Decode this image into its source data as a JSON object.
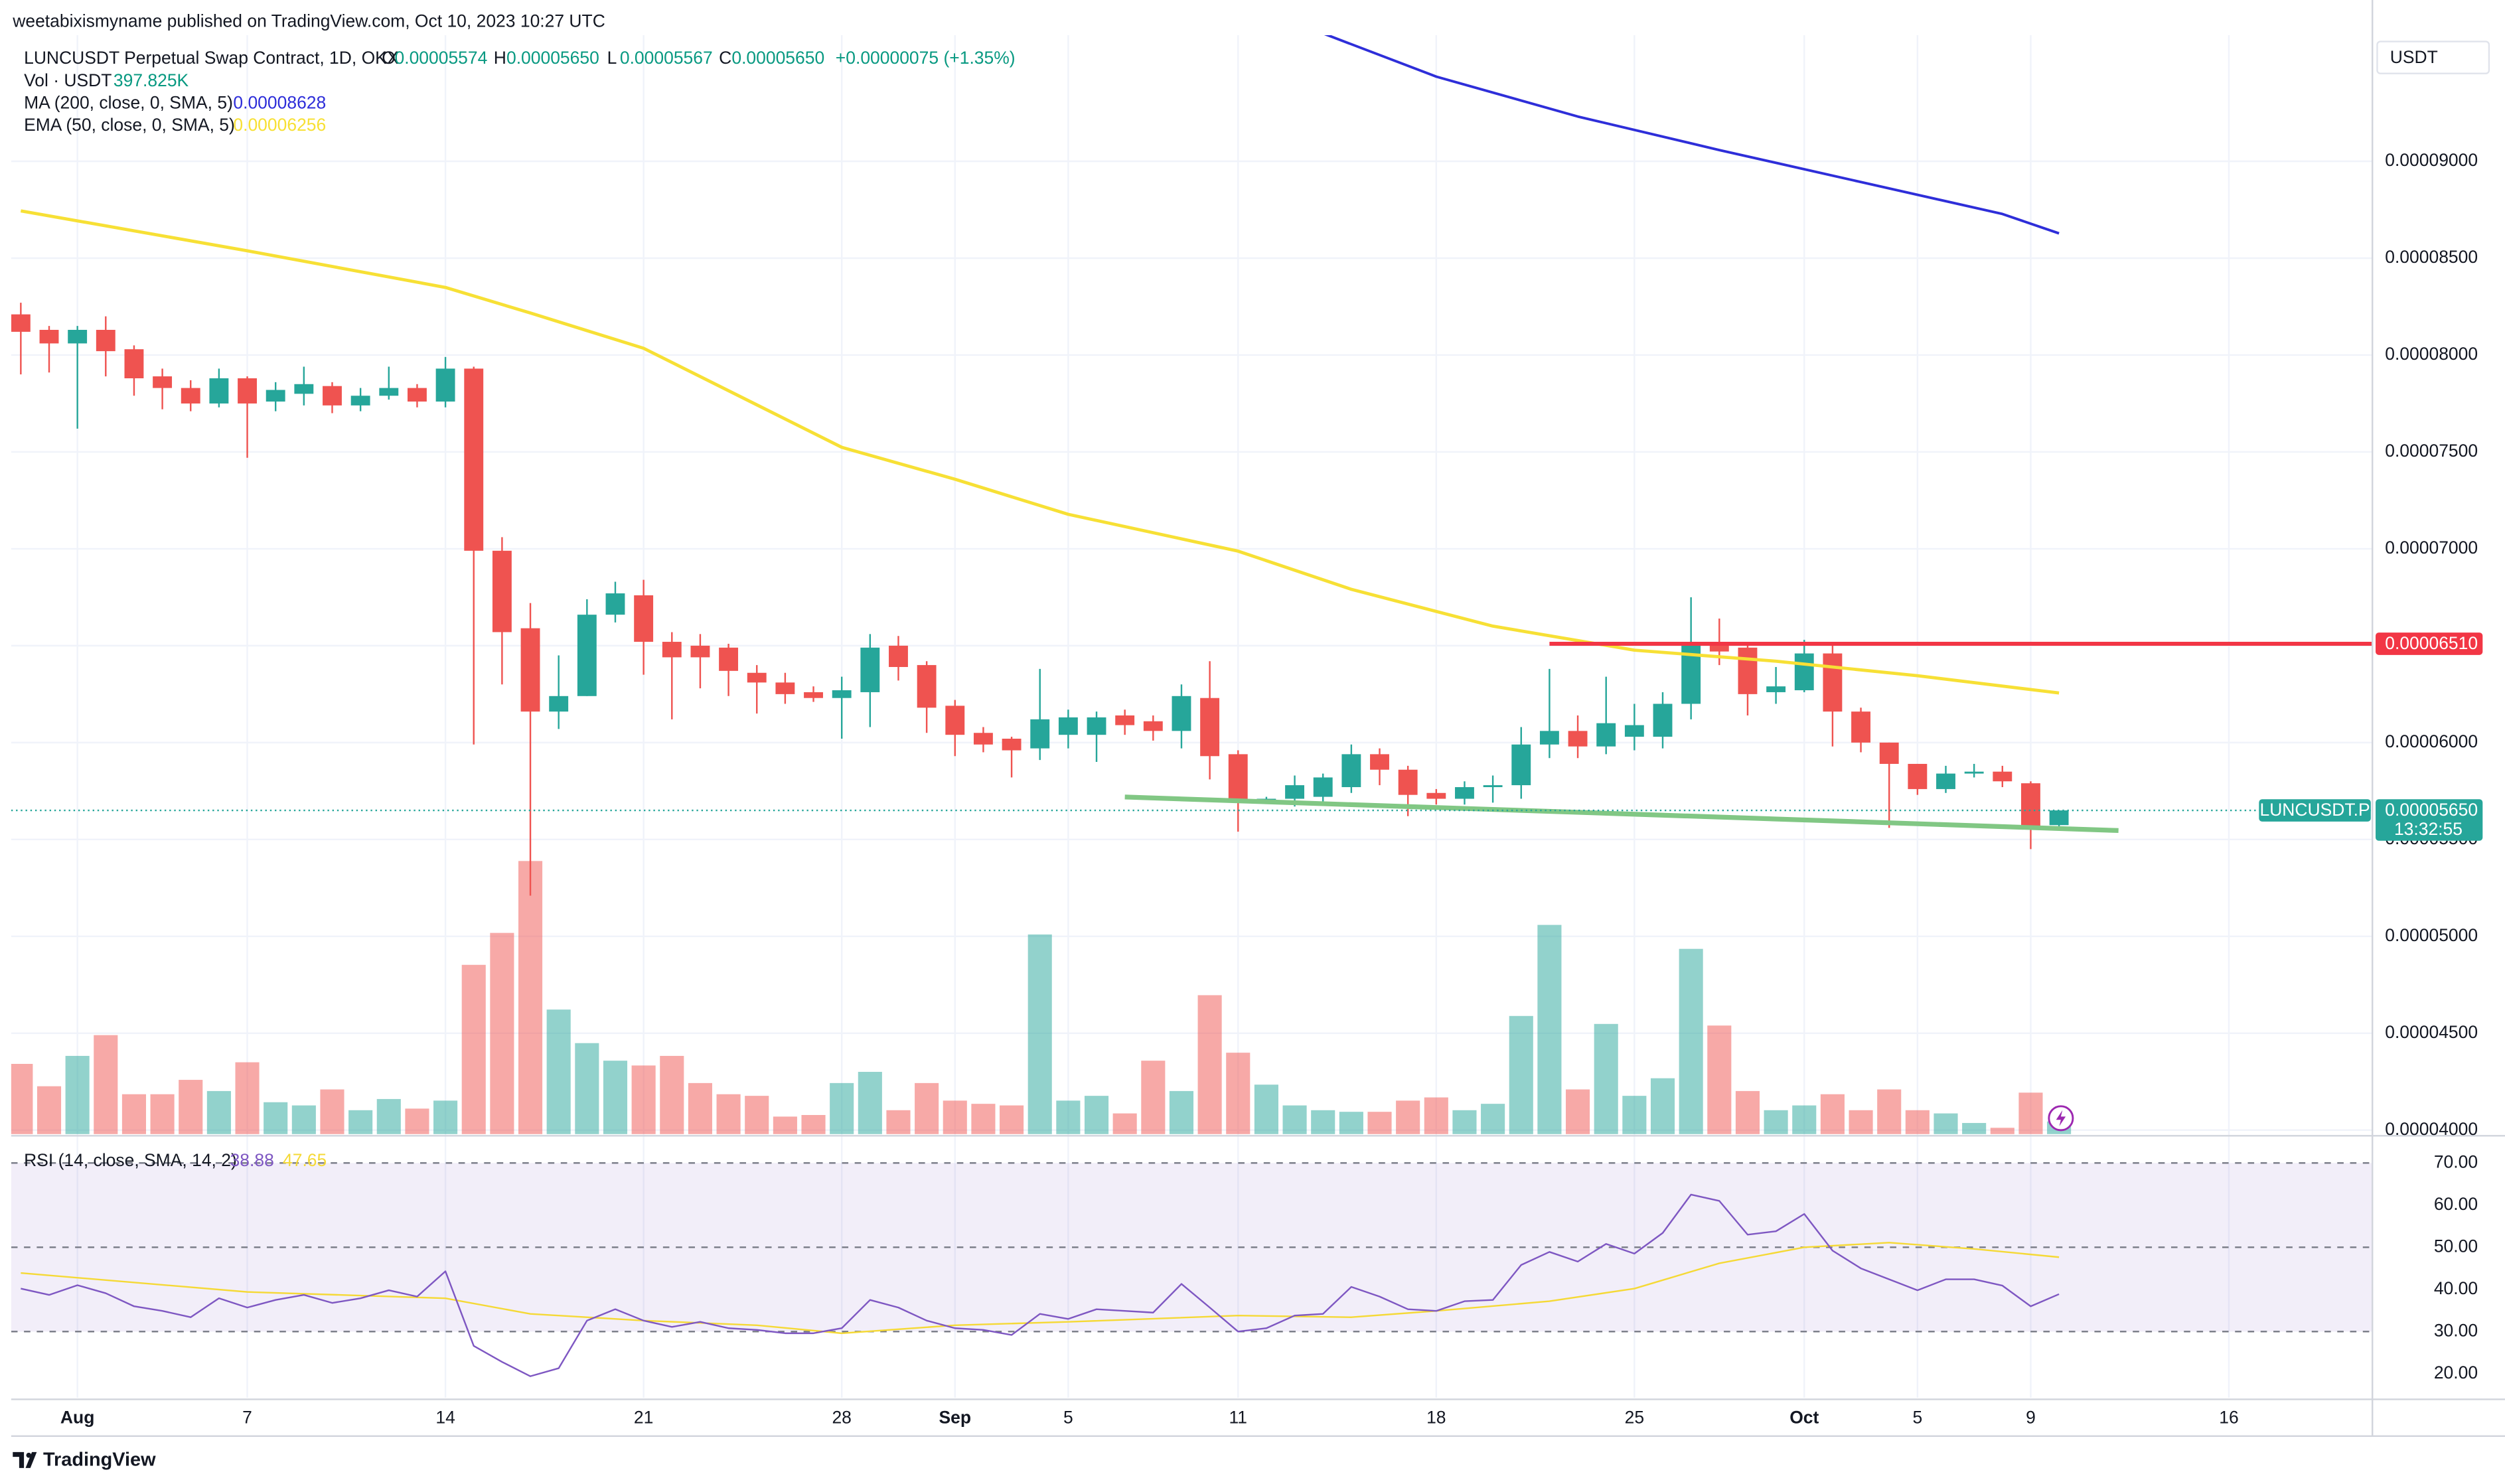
{
  "chart_data": {
    "type": "candlestick",
    "attribution": "weetabixismyname published on TradingView.com, Oct 10, 2023 10:27 UTC",
    "symbol": "LUNCUSDT Perpetual Swap Contract, 1D, OKX",
    "ohlc_names": [
      "O",
      "H",
      "L",
      "C"
    ],
    "ohlc_labels": [
      "0.00005574",
      "0.00005650",
      "0.00005567",
      "0.00005650"
    ],
    "change_label": "+0.00000075 (+1.35%)",
    "currency": "USDT",
    "footer": "TradingView",
    "up_color": "#26a69a",
    "down_color": "#ef5350",
    "grid": true,
    "xlim": [
      -0.34,
      83.07
    ],
    "xticks": [
      {
        "value": 2,
        "label": "Aug"
      },
      {
        "value": 8,
        "label": "7"
      },
      {
        "value": 15,
        "label": "14"
      },
      {
        "value": 22,
        "label": "21"
      },
      {
        "value": 29,
        "label": "28"
      },
      {
        "value": 33,
        "label": "Sep"
      },
      {
        "value": 37,
        "label": "5"
      },
      {
        "value": 43,
        "label": "11"
      },
      {
        "value": 50,
        "label": "18"
      },
      {
        "value": 57,
        "label": "25"
      },
      {
        "value": 63,
        "label": "Oct"
      },
      {
        "value": 67,
        "label": "5"
      },
      {
        "value": 71,
        "label": "9"
      },
      {
        "value": 78,
        "label": "16"
      }
    ],
    "ylim": [
      3.979e-05,
      9.651e-05
    ],
    "yticks": [
      {
        "value": 4e-05,
        "label": "0.00004000"
      },
      {
        "value": 4.5e-05,
        "label": "0.00004500"
      },
      {
        "value": 5e-05,
        "label": "0.00005000"
      },
      {
        "value": 5.5e-05,
        "label": "0.00005500"
      },
      {
        "value": 6e-05,
        "label": "0.00006000"
      },
      {
        "value": 6.5e-05,
        "label": "0.00006500"
      },
      {
        "value": 7e-05,
        "label": "0.00007000"
      },
      {
        "value": 7.5e-05,
        "label": "0.00007500"
      },
      {
        "value": 8e-05,
        "label": "0.00008000"
      },
      {
        "value": 8.5e-05,
        "label": "0.00008500"
      },
      {
        "value": 9e-05,
        "label": "0.00009000"
      }
    ],
    "candles": {
      "open": [
        8.21e-05,
        8.13e-05,
        8.06e-05,
        8.13e-05,
        8.03e-05,
        7.89e-05,
        7.83e-05,
        7.75e-05,
        7.88e-05,
        7.76e-05,
        7.8e-05,
        7.84e-05,
        7.74e-05,
        7.79e-05,
        7.83e-05,
        7.76e-05,
        7.93e-05,
        6.99e-05,
        6.59e-05,
        6.16e-05,
        6.24e-05,
        6.66e-05,
        6.76e-05,
        6.52e-05,
        6.5e-05,
        6.49e-05,
        6.36e-05,
        6.31e-05,
        6.26e-05,
        6.23e-05,
        6.26e-05,
        6.5e-05,
        6.4e-05,
        6.19e-05,
        6.05e-05,
        6.02e-05,
        5.97e-05,
        6.04e-05,
        6.04e-05,
        6.14e-05,
        6.11e-05,
        6.06e-05,
        6.23e-05,
        5.94e-05,
        5.69e-05,
        5.71e-05,
        5.72e-05,
        5.77e-05,
        5.94e-05,
        5.86e-05,
        5.74e-05,
        5.71e-05,
        5.77e-05,
        5.78e-05,
        5.99e-05,
        6.06e-05,
        5.98e-05,
        6.03e-05,
        6.03e-05,
        6.2e-05,
        6.51e-05,
        6.49e-05,
        6.26e-05,
        6.27e-05,
        6.46e-05,
        6.16e-05,
        6e-05,
        5.89e-05,
        5.76e-05,
        5.84e-05,
        5.85e-05,
        5.79e-05,
        5.574e-05
      ],
      "high": [
        8.27e-05,
        8.15e-05,
        8.15e-05,
        8.2e-05,
        8.05e-05,
        7.93e-05,
        7.87e-05,
        7.93e-05,
        7.89e-05,
        7.86e-05,
        7.94e-05,
        7.86e-05,
        7.83e-05,
        7.94e-05,
        7.85e-05,
        7.99e-05,
        7.94e-05,
        7.06e-05,
        6.72e-05,
        6.45e-05,
        6.74e-05,
        6.83e-05,
        6.84e-05,
        6.57e-05,
        6.56e-05,
        6.51e-05,
        6.4e-05,
        6.36e-05,
        6.29e-05,
        6.34e-05,
        6.56e-05,
        6.55e-05,
        6.42e-05,
        6.22e-05,
        6.08e-05,
        6.03e-05,
        6.38e-05,
        6.17e-05,
        6.16e-05,
        6.17e-05,
        6.14e-05,
        6.3e-05,
        6.42e-05,
        5.96e-05,
        5.72e-05,
        5.83e-05,
        5.84e-05,
        5.99e-05,
        5.97e-05,
        5.88e-05,
        5.76e-05,
        5.8e-05,
        5.83e-05,
        6.08e-05,
        6.38e-05,
        6.14e-05,
        6.34e-05,
        6.2e-05,
        6.26e-05,
        6.75e-05,
        6.64e-05,
        6.52e-05,
        6.39e-05,
        6.53e-05,
        6.52e-05,
        6.18e-05,
        6e-05,
        5.89e-05,
        5.88e-05,
        5.89e-05,
        5.88e-05,
        5.8e-05,
        5.65e-05
      ],
      "low": [
        7.9e-05,
        7.91e-05,
        7.62e-05,
        7.89e-05,
        7.79e-05,
        7.72e-05,
        7.71e-05,
        7.73e-05,
        7.47e-05,
        7.71e-05,
        7.74e-05,
        7.7e-05,
        7.71e-05,
        7.77e-05,
        7.73e-05,
        7.73e-05,
        5.99e-05,
        6.3e-05,
        5.21e-05,
        6.07e-05,
        6.24e-05,
        6.62e-05,
        6.35e-05,
        6.12e-05,
        6.28e-05,
        6.24e-05,
        6.15e-05,
        6.2e-05,
        6.21e-05,
        6.02e-05,
        6.08e-05,
        6.32e-05,
        6.05e-05,
        5.93e-05,
        5.95e-05,
        5.82e-05,
        5.91e-05,
        5.97e-05,
        5.9e-05,
        6.04e-05,
        6.01e-05,
        5.97e-05,
        5.81e-05,
        5.54e-05,
        5.69e-05,
        5.67e-05,
        5.69e-05,
        5.74e-05,
        5.78e-05,
        5.62e-05,
        5.68e-05,
        5.68e-05,
        5.69e-05,
        5.71e-05,
        5.92e-05,
        5.92e-05,
        5.94e-05,
        5.96e-05,
        5.97e-05,
        6.12e-05,
        6.4e-05,
        6.14e-05,
        6.2e-05,
        6.26e-05,
        5.98e-05,
        5.95e-05,
        5.56e-05,
        5.73e-05,
        5.74e-05,
        5.82e-05,
        5.77e-05,
        5.45e-05,
        5.567e-05
      ],
      "close": [
        8.12e-05,
        8.06e-05,
        8.13e-05,
        8.02e-05,
        7.88e-05,
        7.83e-05,
        7.75e-05,
        7.88e-05,
        7.75e-05,
        7.82e-05,
        7.85e-05,
        7.74e-05,
        7.79e-05,
        7.83e-05,
        7.76e-05,
        7.93e-05,
        6.99e-05,
        6.57e-05,
        6.16e-05,
        6.24e-05,
        6.66e-05,
        6.77e-05,
        6.52e-05,
        6.44e-05,
        6.44e-05,
        6.37e-05,
        6.31e-05,
        6.25e-05,
        6.23e-05,
        6.27e-05,
        6.49e-05,
        6.39e-05,
        6.18e-05,
        6.04e-05,
        5.99e-05,
        5.96e-05,
        6.12e-05,
        6.13e-05,
        6.13e-05,
        6.09e-05,
        6.06e-05,
        6.24e-05,
        5.93e-05,
        5.69e-05,
        5.71e-05,
        5.78e-05,
        5.82e-05,
        5.94e-05,
        5.86e-05,
        5.73e-05,
        5.71e-05,
        5.77e-05,
        5.78e-05,
        5.99e-05,
        6.06e-05,
        5.98e-05,
        6.1e-05,
        6.09e-05,
        6.2e-05,
        6.51e-05,
        6.47e-05,
        6.25e-05,
        6.29e-05,
        6.46e-05,
        6.16e-05,
        6e-05,
        5.89e-05,
        5.76e-05,
        5.84e-05,
        5.85e-05,
        5.8e-05,
        5.57e-05,
        5.65e-05
      ]
    },
    "volume": {
      "name": "Vol · USDT",
      "last_label": "397.825K",
      "values": [
        2200000,
        1500000,
        2450000,
        3100000,
        1250000,
        1250000,
        1700000,
        1350000,
        2250000,
        1000000,
        900000,
        1400000,
        750000,
        1100000,
        800000,
        1050000,
        5300000,
        6300000,
        8550000,
        3900000,
        2850000,
        2300000,
        2150000,
        2450000,
        1600000,
        1250000,
        1200000,
        550000,
        600000,
        1600000,
        1950000,
        750000,
        1600000,
        1050000,
        950000,
        900000,
        6250000,
        1050000,
        1200000,
        650000,
        2300000,
        1350000,
        4350000,
        2550000,
        1550000,
        900000,
        750000,
        700000,
        700000,
        1050000,
        1150000,
        750000,
        950000,
        3700000,
        6550000,
        1400000,
        3450000,
        1200000,
        1750000,
        5800000,
        3400000,
        1350000,
        750000,
        900000,
        1250000,
        750000,
        1400000,
        750000,
        650000,
        350000,
        200000,
        1300000,
        397825
      ]
    },
    "ma200": {
      "name": "MA (200, close, 0, SMA, 5)",
      "color": "#2e2ed9",
      "x": [
        46,
        50,
        55,
        60,
        65,
        70,
        72
      ],
      "values": [
        9.66e-05,
        9.437e-05,
        9.231e-05,
        9.058e-05,
        8.893e-05,
        8.728e-05,
        8.628e-05
      ]
    },
    "ema50": {
      "name": "EMA (50, close, 0, SMA, 5)",
      "color": "#f7e035",
      "x": [
        0,
        8,
        15,
        18,
        22,
        29,
        33,
        37,
        43,
        47,
        52,
        57,
        62,
        67,
        72
      ],
      "values": [
        8.744e-05,
        8.538e-05,
        8.349e-05,
        8.217e-05,
        8.035e-05,
        7.524e-05,
        7.359e-05,
        7.178e-05,
        6.988e-05,
        6.791e-05,
        6.601e-05,
        6.477e-05,
        6.42e-05,
        6.345e-05,
        6.256e-05
      ]
    },
    "hline": {
      "value": 6.51e-05,
      "label": "0.00006510",
      "x_start": 54,
      "color": "#f23645"
    },
    "trendline": {
      "x": [
        39,
        74.1
      ],
      "values": [
        5.719e-05,
        5.546e-05
      ],
      "color": "#81c784"
    },
    "last_price": {
      "name": "LUNCUSDT.P",
      "label": "0.00005650",
      "countdown": "13:32:55"
    },
    "rsi": {
      "name": "RSI (14, close, SMA, 14, 2)",
      "color": "#7e57c2",
      "ma_color": "#f5d936",
      "ylim": [
        14.3,
        75.7
      ],
      "yticks": [
        {
          "value": 20,
          "label": "20.00"
        },
        {
          "value": 30,
          "label": "30.00"
        },
        {
          "value": 40,
          "label": "40.00"
        },
        {
          "value": 50,
          "label": "50.00"
        },
        {
          "value": 60,
          "label": "60.00"
        },
        {
          "value": 70,
          "label": "70.00"
        }
      ],
      "band": [
        30,
        70
      ],
      "midline": 50,
      "values": [
        40.2,
        38.7,
        41.0,
        39.1,
        36.0,
        34.9,
        33.4,
        37.9,
        35.7,
        37.5,
        38.7,
        36.8,
        37.9,
        39.8,
        38.3,
        44.3,
        26.6,
        22.8,
        19.4,
        21.3,
        32.6,
        35.3,
        32.6,
        31.1,
        32.3,
        30.8,
        30.4,
        29.6,
        29.6,
        30.8,
        37.5,
        35.7,
        32.6,
        30.8,
        30.4,
        29.2,
        34.2,
        33.0,
        35.3,
        34.9,
        34.5,
        41.3,
        35.7,
        30.0,
        30.8,
        33.8,
        34.2,
        40.6,
        38.3,
        35.3,
        34.9,
        37.2,
        37.5,
        45.8,
        48.9,
        46.6,
        50.8,
        48.5,
        53.4,
        62.5,
        61.0,
        53.0,
        53.8,
        57.9,
        49.2,
        45.0,
        42.4,
        39.8,
        42.4,
        42.4,
        40.9,
        36.0,
        38.88
      ],
      "ma_x": [
        0,
        8,
        15,
        18,
        22,
        26,
        29,
        33,
        37,
        43,
        47,
        50,
        54,
        57,
        60,
        63,
        66,
        69,
        72
      ],
      "ma_values": [
        43.9,
        39.4,
        37.9,
        34.2,
        32.6,
        31.5,
        29.6,
        31.5,
        32.3,
        33.8,
        33.4,
        34.9,
        37.2,
        40.2,
        46.2,
        50.0,
        51.1,
        49.6,
        47.65
      ]
    }
  }
}
